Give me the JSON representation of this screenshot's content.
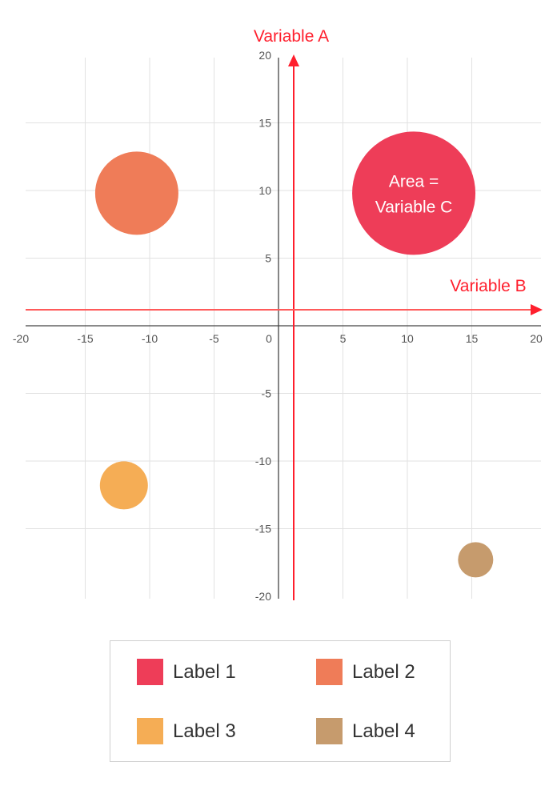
{
  "chart_data": {
    "type": "scatter",
    "xlim": [
      -20,
      20
    ],
    "ylim": [
      -20,
      20
    ],
    "x_ticks": [
      -20,
      -15,
      -10,
      -5,
      0,
      5,
      10,
      15,
      20
    ],
    "y_ticks": [
      20,
      15,
      10,
      5,
      -5,
      -10,
      -15,
      -20
    ],
    "grid": true,
    "axis_annotations": {
      "y_arrow_label": "Variable A",
      "x_arrow_label": "Variable B",
      "bubble_note": [
        "Area =",
        "Variable C"
      ]
    },
    "series": [
      {
        "name": "Label 1",
        "color": "#ee3d58",
        "points": [
          {
            "x": 10.5,
            "y": 9.8
          }
        ],
        "size_level": 4
      },
      {
        "name": "Label 2",
        "color": "#ef7c58",
        "points": [
          {
            "x": -11,
            "y": 9.8
          }
        ],
        "size_level": 3
      },
      {
        "name": "Label 3",
        "color": "#f5ad55",
        "points": [
          {
            "x": -12,
            "y": -11.8
          }
        ],
        "size_level": 2
      },
      {
        "name": "Label 4",
        "color": "#c69b6d",
        "points": [
          {
            "x": 15.3,
            "y": -17.3
          }
        ],
        "size_level": 1
      }
    ],
    "legend_position": "bottom"
  }
}
